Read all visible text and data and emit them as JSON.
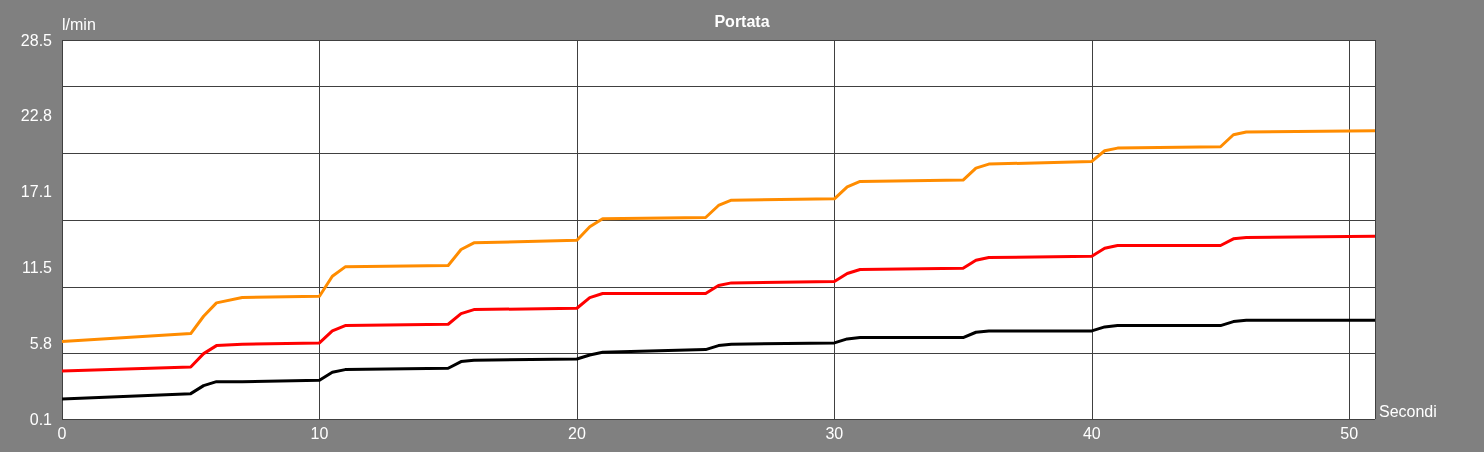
{
  "chart_data": {
    "type": "line",
    "title": "Portata",
    "xlabel": "Secondi",
    "ylabel": "l/min",
    "x": [
      0,
      5,
      5.5,
      6,
      7,
      10,
      10.5,
      11,
      15,
      15.5,
      16,
      20,
      20.5,
      21,
      25,
      25.5,
      26,
      30,
      30.5,
      31,
      35,
      35.5,
      36,
      40,
      40.5,
      41,
      45,
      45.5,
      46,
      51
    ],
    "series": [
      {
        "color": "#ff8c00",
        "values": [
          5.9,
          6.5,
          7.8,
          8.8,
          9.2,
          9.3,
          10.8,
          11.5,
          11.6,
          12.8,
          13.3,
          13.5,
          14.5,
          15.1,
          15.2,
          16.1,
          16.5,
          16.6,
          17.5,
          17.9,
          18.0,
          18.9,
          19.2,
          19.4,
          20.2,
          20.4,
          20.5,
          21.4,
          21.6,
          21.7
        ]
      },
      {
        "color": "#ff0000",
        "values": [
          3.7,
          4.0,
          5.0,
          5.6,
          5.7,
          5.8,
          6.7,
          7.1,
          7.2,
          8.0,
          8.3,
          8.4,
          9.2,
          9.5,
          9.5,
          10.1,
          10.3,
          10.4,
          11.0,
          11.3,
          11.4,
          12.0,
          12.2,
          12.3,
          12.9,
          13.1,
          13.1,
          13.6,
          13.7,
          13.8
        ]
      },
      {
        "color": "#000000",
        "values": [
          1.6,
          2.0,
          2.6,
          2.9,
          2.9,
          3.0,
          3.6,
          3.8,
          3.9,
          4.4,
          4.5,
          4.6,
          4.9,
          5.1,
          5.3,
          5.6,
          5.7,
          5.8,
          6.1,
          6.2,
          6.2,
          6.6,
          6.7,
          6.7,
          7.0,
          7.1,
          7.1,
          7.4,
          7.5,
          7.5
        ]
      }
    ],
    "xlim": [
      0,
      51
    ],
    "xticks": [
      0,
      10,
      20,
      30,
      40,
      50
    ],
    "ylim": [
      0.1,
      28.5
    ],
    "yticks": [
      {
        "value": 0.1,
        "label": "0.1"
      },
      {
        "value": 5.78,
        "label": "5.8"
      },
      {
        "value": 11.46,
        "label": "11.5"
      },
      {
        "value": 17.14,
        "label": "17.1"
      },
      {
        "value": 22.82,
        "label": "22.8"
      },
      {
        "value": 28.5,
        "label": "28.5"
      }
    ],
    "grid": true,
    "marker": "none",
    "line_style": "solid"
  }
}
